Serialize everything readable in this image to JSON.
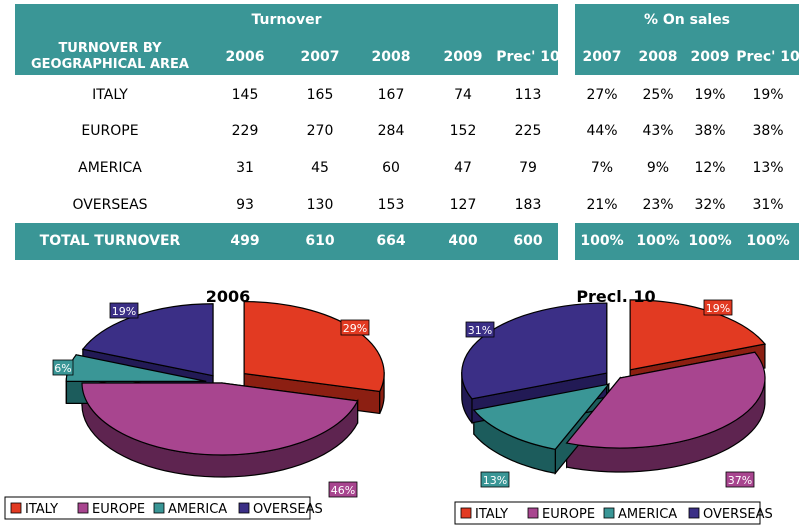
{
  "table": {
    "turnover_title": "Turnover",
    "onsales_title": "% On sales",
    "area_header_line1": "TURNOVER BY",
    "area_header_line2": "GEOGRAPHICAL AREA",
    "turnover_years": [
      "2006",
      "2007",
      "2008",
      "2009",
      "Prec' 10"
    ],
    "onsales_years": [
      "2007",
      "2008",
      "2009",
      "Prec' 10"
    ],
    "rows": [
      {
        "area": "ITALY",
        "turnover": [
          "145",
          "165",
          "167",
          "74",
          "113"
        ],
        "pct": [
          "27%",
          "25%",
          "19%",
          "19%"
        ]
      },
      {
        "area": "EUROPE",
        "turnover": [
          "229",
          "270",
          "284",
          "152",
          "225"
        ],
        "pct": [
          "44%",
          "43%",
          "38%",
          "38%"
        ]
      },
      {
        "area": "AMERICA",
        "turnover": [
          "31",
          "45",
          "60",
          "47",
          "79"
        ],
        "pct": [
          "7%",
          "9%",
          "12%",
          "13%"
        ]
      },
      {
        "area": "OVERSEAS",
        "turnover": [
          "93",
          "130",
          "153",
          "127",
          "183"
        ],
        "pct": [
          "21%",
          "23%",
          "32%",
          "31%"
        ]
      }
    ],
    "total": {
      "area": "TOTAL TURNOVER",
      "turnover": [
        "499",
        "610",
        "664",
        "400",
        "600"
      ],
      "pct": [
        "100%",
        "100%",
        "100%",
        "100%"
      ]
    }
  },
  "chart_data": [
    {
      "type": "pie",
      "title": "2006",
      "categories": [
        "ITALY",
        "EUROPE",
        "AMERICA",
        "OVERSEAS"
      ],
      "values": [
        29,
        46,
        6,
        19
      ],
      "labels": [
        "29%",
        "46%",
        "6%",
        "19%"
      ],
      "legend": "bottom",
      "style": "3d-exploded"
    },
    {
      "type": "pie",
      "title": "Precl. 10",
      "categories": [
        "ITALY",
        "EUROPE",
        "AMERICA",
        "OVERSEAS"
      ],
      "values": [
        19,
        37,
        13,
        31
      ],
      "labels": [
        "19%",
        "37%",
        "13%",
        "31%"
      ],
      "legend": "bottom",
      "style": "3d-exploded"
    }
  ],
  "colors": {
    "header_band": "#3a9696",
    "series": [
      "#e23a22",
      "#a8458f",
      "#3a9696",
      "#3b2f86"
    ],
    "series_side": [
      "#8c1f12",
      "#5e2450",
      "#1c5c5c",
      "#221a55"
    ]
  }
}
